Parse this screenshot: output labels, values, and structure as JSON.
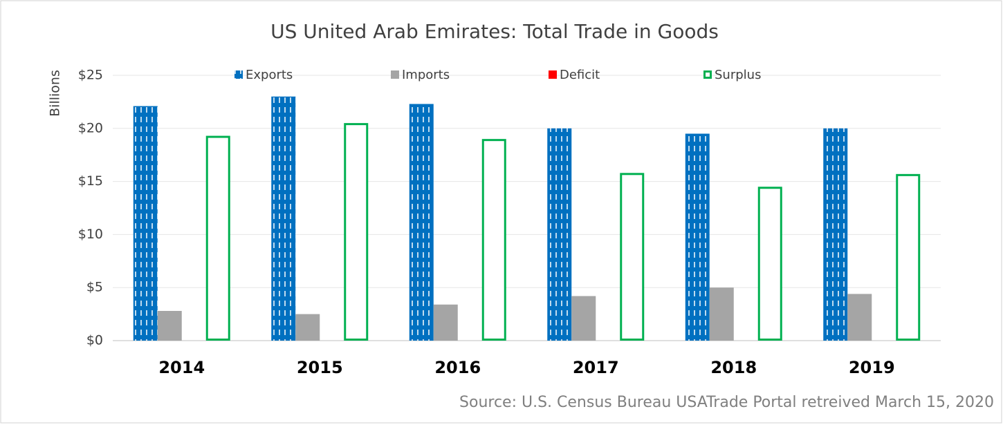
{
  "chart_data": {
    "type": "bar",
    "title": "US United Arab Emirates: Total Trade in Goods",
    "y_label": "Billions",
    "source": "Source: U.S. Census Bureau USATrade Portal retreived March 15, 2020",
    "categories": [
      "2014",
      "2015",
      "2016",
      "2017",
      "2018",
      "2019"
    ],
    "series": [
      {
        "name": "Exports",
        "color": "#0070c0",
        "style": "dashed",
        "values": [
          22.1,
          23.0,
          22.3,
          20.0,
          19.5,
          20.0
        ]
      },
      {
        "name": "Imports",
        "color": "#a5a5a5",
        "style": "solid",
        "values": [
          2.8,
          2.5,
          3.4,
          4.2,
          5.0,
          4.4
        ]
      },
      {
        "name": "Deficit",
        "color": "#ff0000",
        "style": "solid",
        "values": [
          null,
          null,
          null,
          null,
          null,
          null
        ]
      },
      {
        "name": "Surplus",
        "color": "#00b050",
        "style": "outline",
        "values": [
          19.3,
          20.5,
          19.0,
          15.8,
          14.5,
          15.7
        ]
      }
    ],
    "ylim": [
      0,
      25
    ],
    "yticks": [
      {
        "value": 0,
        "label": "$0"
      },
      {
        "value": 5,
        "label": "$5"
      },
      {
        "value": 10,
        "label": "$10"
      },
      {
        "value": 15,
        "label": "$15"
      },
      {
        "value": 20,
        "label": "$20"
      },
      {
        "value": 25,
        "label": "$25"
      }
    ],
    "grid": true
  }
}
